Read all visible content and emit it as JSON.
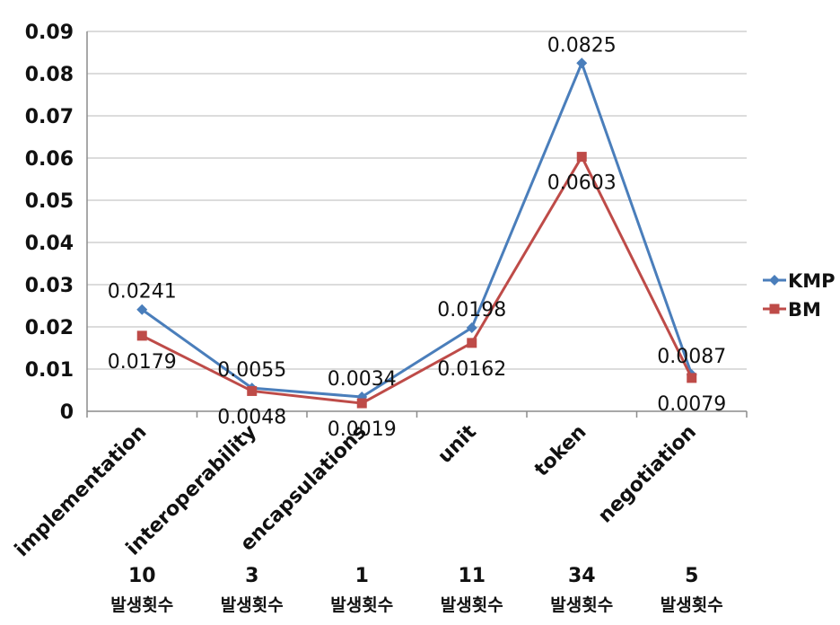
{
  "chart_data": {
    "type": "line",
    "title": "",
    "xlabel": "",
    "ylabel": "",
    "categories": [
      "implementation",
      "interoperability",
      "encapsulations",
      "unit",
      "token",
      "negotiation"
    ],
    "counts": [
      "10",
      "3",
      "1",
      "11",
      "34",
      "5"
    ],
    "count_unit": "발생횟수",
    "y_ticks": [
      "0",
      "0.01",
      "0.02",
      "0.03",
      "0.04",
      "0.05",
      "0.06",
      "0.07",
      "0.08",
      "0.09"
    ],
    "ylim": [
      0,
      0.09
    ],
    "grid": true,
    "legend_position": "right",
    "series": [
      {
        "name": "KMP",
        "color": "#4a7ebb",
        "marker": "diamond",
        "values": [
          0.0241,
          0.0055,
          0.0034,
          0.0198,
          0.0825,
          0.0087
        ],
        "labels": [
          "0.0241",
          "0.0055",
          "0.0034",
          "0.0198",
          "0.0825",
          "0.0087"
        ]
      },
      {
        "name": "BM",
        "color": "#be4b48",
        "marker": "square",
        "values": [
          0.0179,
          0.0048,
          0.0019,
          0.0162,
          0.0603,
          0.0079
        ],
        "labels": [
          "0.0179",
          "0.0048",
          "0.0019",
          "0.0162",
          "0.0603",
          "0.0079"
        ]
      }
    ]
  }
}
